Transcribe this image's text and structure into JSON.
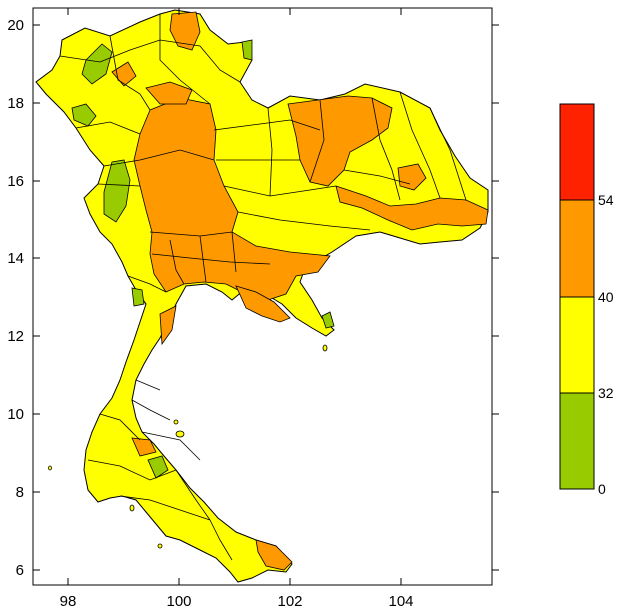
{
  "map": {
    "x_ticks": [
      "98",
      "100",
      "102",
      "104"
    ],
    "y_ticks": [
      "6",
      "8",
      "10",
      "12",
      "14",
      "16",
      "18",
      "20"
    ],
    "x_range": [
      97.4,
      105.6
    ],
    "y_range": [
      5.7,
      20.5
    ]
  },
  "legend": {
    "bins": [
      {
        "label": "0",
        "color": "#99cc00"
      },
      {
        "label": "32",
        "color": "#ffff00"
      },
      {
        "label": "40",
        "color": "#ff9900"
      },
      {
        "label": "54",
        "color": "#ff2200"
      }
    ]
  },
  "colors": {
    "low": "#99cc00",
    "mid": "#ffff00",
    "high": "#ff9900",
    "max": "#ff2200",
    "border": "#000000"
  }
}
